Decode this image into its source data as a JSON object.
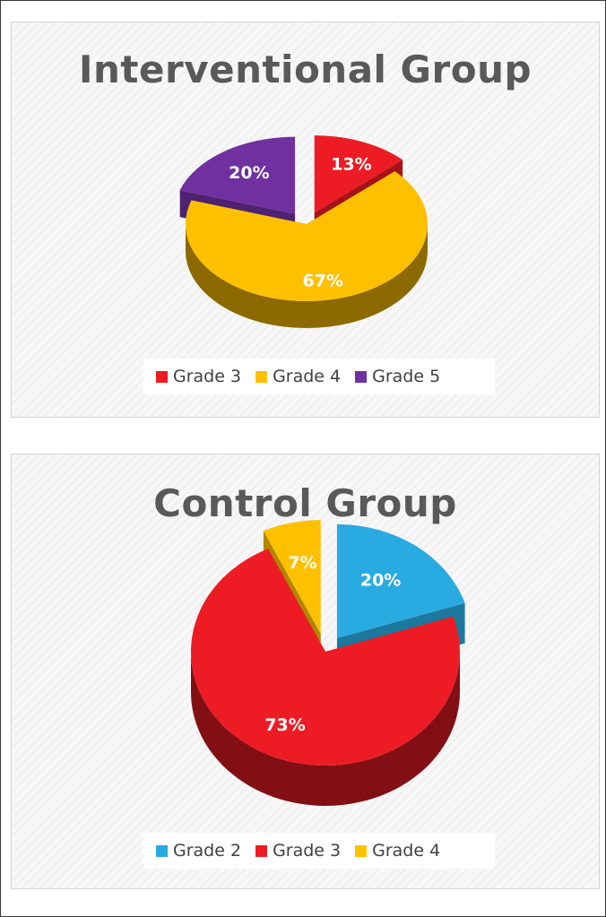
{
  "chart_data": [
    {
      "type": "pie",
      "title": "Interventional Group",
      "slices": [
        {
          "label": "Grade 3",
          "value": 13,
          "value_label": "13%",
          "color": "#ED1C24"
        },
        {
          "label": "Grade 4",
          "value": 67,
          "value_label": "67%",
          "color": "#FFC000"
        },
        {
          "label": "Grade 5",
          "value": 20,
          "value_label": "20%",
          "color": "#7030A0"
        }
      ],
      "legend_position": "bottom"
    },
    {
      "type": "pie",
      "title": "Control Group",
      "slices": [
        {
          "label": "Grade 2",
          "value": 20,
          "value_label": "20%",
          "color": "#29ABE2"
        },
        {
          "label": "Grade 3",
          "value": 73,
          "value_label": "73%",
          "color": "#ED1C24"
        },
        {
          "label": "Grade 4",
          "value": 7,
          "value_label": "7%",
          "color": "#FFC000"
        }
      ],
      "legend_position": "bottom"
    }
  ]
}
